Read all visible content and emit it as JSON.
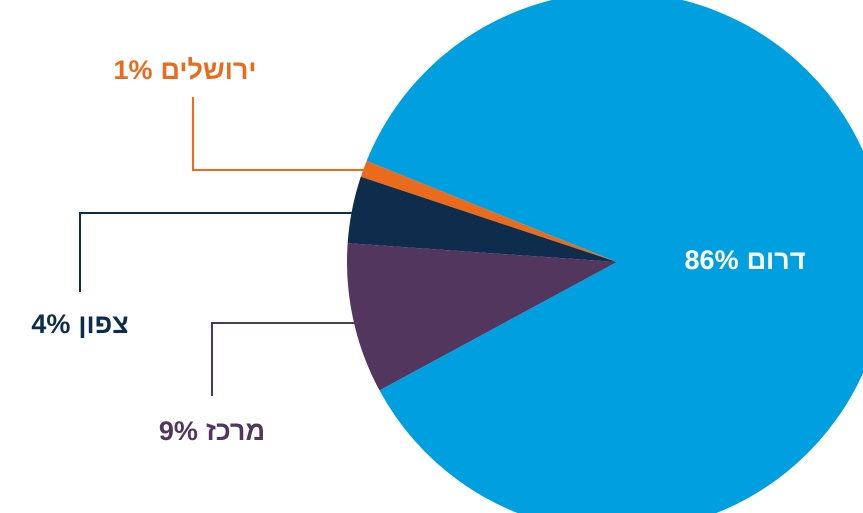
{
  "chart_data": {
    "type": "pie",
    "categories": [
      "ירושלים",
      "צפון",
      "מרכז",
      "דרום"
    ],
    "values": [
      1,
      4,
      9,
      86
    ],
    "value_labels": [
      "1%",
      "4%",
      "9%",
      "86%"
    ],
    "colors": [
      "#ea6b1c",
      "#0e2c4c",
      "#52365e",
      "#009fe0"
    ]
  }
}
